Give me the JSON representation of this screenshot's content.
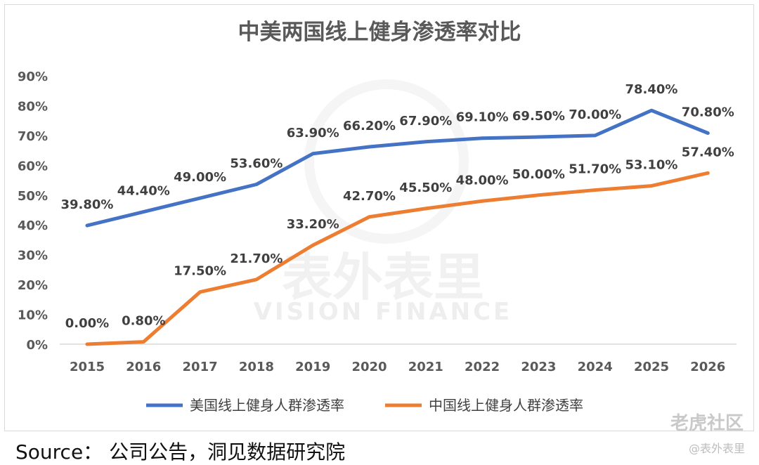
{
  "chart_data": {
    "type": "line",
    "title": "中美两国线上健身渗透率对比",
    "categories": [
      "2015",
      "2016",
      "2017",
      "2018",
      "2019",
      "2020",
      "2021",
      "2022",
      "2023",
      "2024",
      "2025",
      "2026"
    ],
    "ylim": [
      0,
      90
    ],
    "yticks": [
      "0%",
      "10%",
      "20%",
      "30%",
      "40%",
      "50%",
      "60%",
      "70%",
      "80%",
      "90%"
    ],
    "series": [
      {
        "name": "美国线上健身人群渗透率",
        "color": "#4472c4",
        "values": [
          39.8,
          44.4,
          49.0,
          53.6,
          63.9,
          66.2,
          67.9,
          69.1,
          69.5,
          70.0,
          78.4,
          70.8
        ],
        "labels": [
          "39.80%",
          "44.40%",
          "49.00%",
          "53.60%",
          "63.90%",
          "66.20%",
          "67.90%",
          "69.10%",
          "69.50%",
          "70.00%",
          "78.40%",
          "70.80%"
        ]
      },
      {
        "name": "中国线上健身人群渗透率",
        "color": "#ed7d31",
        "values": [
          0.0,
          0.8,
          17.5,
          21.7,
          33.2,
          42.7,
          45.5,
          48.0,
          50.0,
          51.7,
          53.1,
          57.4
        ],
        "labels": [
          "0.00%",
          "0.80%",
          "17.50%",
          "21.70%",
          "33.20%",
          "42.70%",
          "45.50%",
          "48.00%",
          "50.00%",
          "51.70%",
          "53.10%",
          "57.40%"
        ]
      }
    ],
    "legend": "bottom"
  },
  "watermark": {
    "main": "表外表里",
    "sub": "VISION FINANCE"
  },
  "source": "Source：  公司公告，洞见数据研究院",
  "corner_mark": "老虎社区",
  "corner_handle": "@表外表里"
}
